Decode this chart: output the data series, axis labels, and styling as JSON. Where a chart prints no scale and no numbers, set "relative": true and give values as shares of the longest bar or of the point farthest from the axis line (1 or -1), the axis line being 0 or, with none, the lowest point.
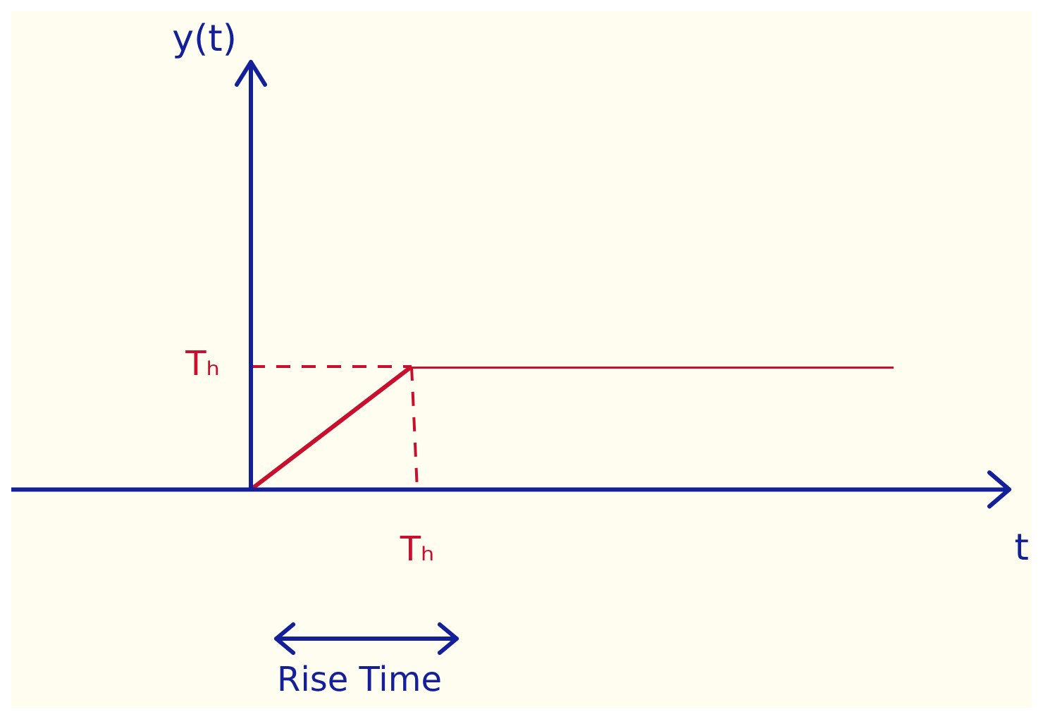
{
  "chart_data": {
    "type": "line",
    "relative": true,
    "xlabel": "t",
    "categories": [
      null,
      null,
      null,
      null,
      null
    ],
    "series": [
      {
        "color": "#c8102e",
        "values": [
          0,
          1,
          1,
          1,
          1
        ]
      }
    ],
    "ref_lines": [
      {
        "axis": "y",
        "value": 1,
        "label": "Tₕ",
        "color": "#c8102e",
        "line_style": "dashed"
      }
    ],
    "annotations": [
      "y(t)",
      "Tₕ",
      "Rise Time"
    ],
    "grid": false,
    "legend": false,
    "marker": "none",
    "line_style": "solid"
  }
}
